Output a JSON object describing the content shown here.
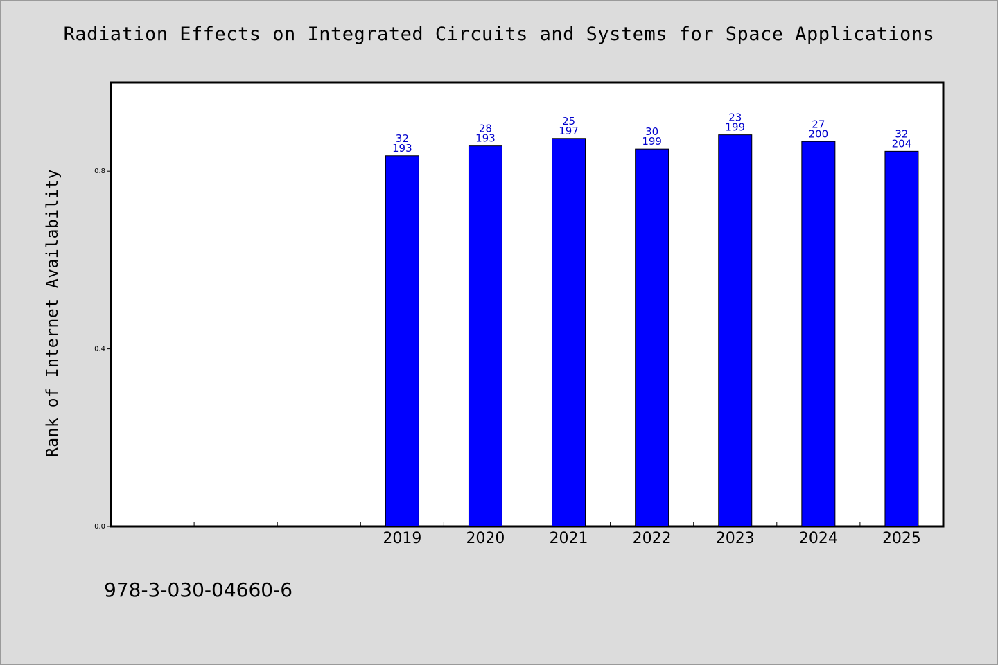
{
  "chart_data": {
    "type": "bar",
    "title": "Radiation Effects on Integrated Circuits and Systems for Space Applications",
    "xlabel": "",
    "ylabel": "Rank of Internet Availability",
    "ylim": [
      0.0,
      1.0
    ],
    "yticks": [
      "0.0",
      "0.4",
      "0.8"
    ],
    "categories": [
      "",
      "",
      "",
      "2019",
      "2020",
      "2021",
      "2022",
      "2023",
      "2024",
      "2025"
    ],
    "values": [
      null,
      null,
      null,
      0.835,
      0.857,
      0.874,
      0.85,
      0.882,
      0.867,
      0.845
    ],
    "bar_labels_top": [
      "",
      "",
      "",
      "32",
      "28",
      "25",
      "30",
      "23",
      "27",
      "32"
    ],
    "bar_labels_bottom": [
      "",
      "",
      "",
      "193",
      "193",
      "197",
      "199",
      "199",
      "200",
      "204"
    ],
    "bar_color": "#0000ff",
    "label_color": "#0000cc",
    "grid": false
  },
  "footer": {
    "isbn": "978-3-030-04660-6"
  }
}
